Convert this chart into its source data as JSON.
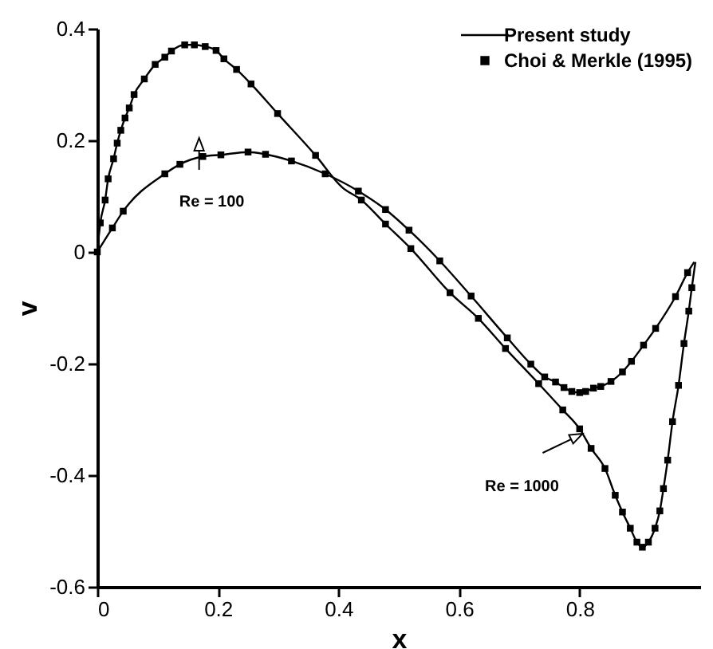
{
  "chart_data": {
    "type": "line",
    "xlabel": "x",
    "ylabel": "v",
    "xlim": [
      0,
      1
    ],
    "ylim": [
      -0.6,
      0.4
    ],
    "xticks": [
      0,
      0.2,
      0.4,
      0.6,
      0.8
    ],
    "yticks": [
      -0.6,
      -0.4,
      -0.2,
      0,
      0.2,
      0.4
    ],
    "legend": "top right",
    "annotations": [
      {
        "text": "Re = 100",
        "x": 0.19,
        "y": 0.17
      },
      {
        "text": "Re = 1000",
        "x": 0.826,
        "y": -0.36
      }
    ],
    "series": [
      {
        "name": "Present study",
        "color": "#000000",
        "x": [
          0,
          0.025,
          0.043,
          0.112,
          0.137,
          0.175,
          0.205,
          0.25,
          0.279,
          0.322,
          0.378,
          0.433,
          0.478,
          0.517,
          0.568,
          0.62,
          0.68,
          0.719,
          0.742,
          0.76,
          0.774,
          0.787,
          0.8,
          0.81,
          0.823,
          0.835,
          0.852,
          0.871,
          0.886,
          0.906,
          0.926,
          0.959,
          0.979,
          0.99
        ],
        "values": [
          0,
          0.043,
          0.073,
          0.14,
          0.157,
          0.171,
          0.174,
          0.179,
          0.175,
          0.163,
          0.14,
          0.109,
          0.076,
          0.039,
          -0.016,
          -0.079,
          -0.154,
          -0.201,
          -0.224,
          -0.233,
          -0.243,
          -0.25,
          -0.252,
          -0.25,
          -0.244,
          -0.241,
          -0.232,
          -0.215,
          -0.196,
          -0.167,
          -0.137,
          -0.08,
          -0.037,
          -0.018
        ]
      },
      {
        "color": "#000000",
        "x": [
          0,
          0.005,
          0.013,
          0.018,
          0.027,
          0.033,
          0.039,
          0.046,
          0.053,
          0.061,
          0.078,
          0.096,
          0.112,
          0.123,
          0.145,
          0.161,
          0.179,
          0.197,
          0.21,
          0.231,
          0.255,
          0.299,
          0.362,
          0.406,
          0.438,
          0.478,
          0.52,
          0.585,
          0.632,
          0.677,
          0.732,
          0.772,
          0.8,
          0.819,
          0.842,
          0.859,
          0.871,
          0.884,
          0.895,
          0.904,
          0.914,
          0.925,
          0.933,
          0.939,
          0.946,
          0.954,
          0.964,
          0.973,
          0.981,
          0.986,
          0.992
        ],
        "values": [
          0,
          0.052,
          0.093,
          0.131,
          0.167,
          0.195,
          0.218,
          0.24,
          0.258,
          0.282,
          0.31,
          0.336,
          0.349,
          0.36,
          0.371,
          0.371,
          0.368,
          0.361,
          0.346,
          0.327,
          0.301,
          0.248,
          0.173,
          0.116,
          0.093,
          0.05,
          0.006,
          -0.073,
          -0.119,
          -0.173,
          -0.236,
          -0.283,
          -0.317,
          -0.352,
          -0.388,
          -0.436,
          -0.466,
          -0.495,
          -0.52,
          -0.529,
          -0.52,
          -0.495,
          -0.464,
          -0.424,
          -0.373,
          -0.304,
          -0.239,
          -0.164,
          -0.106,
          -0.064,
          -0.018
        ]
      },
      {
        "name": "Choi & Merkle (1995)",
        "type": "scatter",
        "marker": "square",
        "color": "#000000",
        "x": [
          0,
          0.025,
          0.043,
          0.112,
          0.137,
          0.175,
          0.205,
          0.25,
          0.279,
          0.322,
          0.378,
          0.433,
          0.478,
          0.517,
          0.568,
          0.62,
          0.68,
          0.719,
          0.742,
          0.76,
          0.774,
          0.787,
          0.8,
          0.81,
          0.823,
          0.835,
          0.852,
          0.871,
          0.886,
          0.906,
          0.926,
          0.959,
          0.979
        ],
        "values": [
          0,
          0.043,
          0.073,
          0.14,
          0.157,
          0.171,
          0.174,
          0.179,
          0.175,
          0.163,
          0.14,
          0.109,
          0.076,
          0.039,
          -0.016,
          -0.079,
          -0.154,
          -0.201,
          -0.224,
          -0.233,
          -0.243,
          -0.25,
          -0.252,
          -0.25,
          -0.244,
          -0.241,
          -0.232,
          -0.215,
          -0.196,
          -0.167,
          -0.137,
          -0.08,
          -0.037
        ]
      },
      {
        "type": "scatter",
        "marker": "square",
        "color": "#000000",
        "x": [
          0.005,
          0.013,
          0.018,
          0.027,
          0.033,
          0.039,
          0.046,
          0.053,
          0.061,
          0.078,
          0.096,
          0.112,
          0.123,
          0.145,
          0.161,
          0.179,
          0.197,
          0.21,
          0.231,
          0.255,
          0.299,
          0.362,
          0.438,
          0.478,
          0.52,
          0.585,
          0.632,
          0.677,
          0.732,
          0.772,
          0.8,
          0.819,
          0.842,
          0.859,
          0.871,
          0.884,
          0.895,
          0.904,
          0.914,
          0.925,
          0.933,
          0.939,
          0.946,
          0.954,
          0.964,
          0.973,
          0.981,
          0.986
        ],
        "values": [
          0.052,
          0.093,
          0.131,
          0.167,
          0.195,
          0.218,
          0.24,
          0.258,
          0.282,
          0.31,
          0.336,
          0.349,
          0.36,
          0.371,
          0.371,
          0.368,
          0.361,
          0.346,
          0.327,
          0.301,
          0.248,
          0.173,
          0.093,
          0.05,
          0.006,
          -0.073,
          -0.119,
          -0.173,
          -0.236,
          -0.283,
          -0.317,
          -0.352,
          -0.388,
          -0.436,
          -0.466,
          -0.495,
          -0.52,
          -0.529,
          -0.52,
          -0.495,
          -0.464,
          -0.424,
          -0.373,
          -0.304,
          -0.239,
          -0.164,
          -0.106,
          -0.064
        ]
      }
    ]
  }
}
